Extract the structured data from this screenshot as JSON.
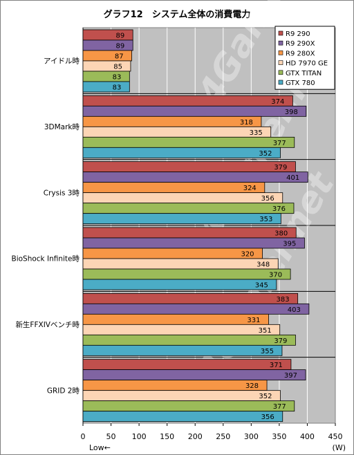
{
  "chart_data": {
    "type": "bar",
    "orientation": "horizontal",
    "title": "グラフ12　システム全体の消費電力",
    "categories": [
      "アイドル時",
      "3DMark時",
      "Crysis 3時",
      "BioShock Infinite時",
      "新生FFXIVベンチ時",
      "GRID 2時"
    ],
    "series": [
      {
        "name": "R9 290",
        "color": "#c0504d",
        "values": [
          89,
          374,
          379,
          380,
          383,
          371
        ]
      },
      {
        "name": "R9 290X",
        "color": "#8064a2",
        "values": [
          89,
          398,
          401,
          395,
          403,
          397
        ]
      },
      {
        "name": "R9 280X",
        "color": "#f79646",
        "values": [
          87,
          318,
          324,
          320,
          331,
          328
        ]
      },
      {
        "name": "HD 7970 GE",
        "color": "#fcd5b5",
        "values": [
          85,
          335,
          356,
          348,
          351,
          352
        ]
      },
      {
        "name": "GTX TITAN",
        "color": "#9bbb59",
        "values": [
          83,
          377,
          376,
          370,
          379,
          377
        ]
      },
      {
        "name": "GTX 780",
        "color": "#4bacc6",
        "values": [
          83,
          352,
          353,
          345,
          355,
          356
        ]
      }
    ],
    "xlim": [
      0,
      450
    ],
    "xticks": [
      0,
      50,
      100,
      150,
      200,
      250,
      300,
      350,
      400,
      450
    ],
    "xlabel_left": "Low←",
    "xlabel_unit": "(W)",
    "grid": true,
    "plot_background": "#c0c0c0",
    "legend_position": "top-right",
    "watermark": "4Gamer.net"
  }
}
